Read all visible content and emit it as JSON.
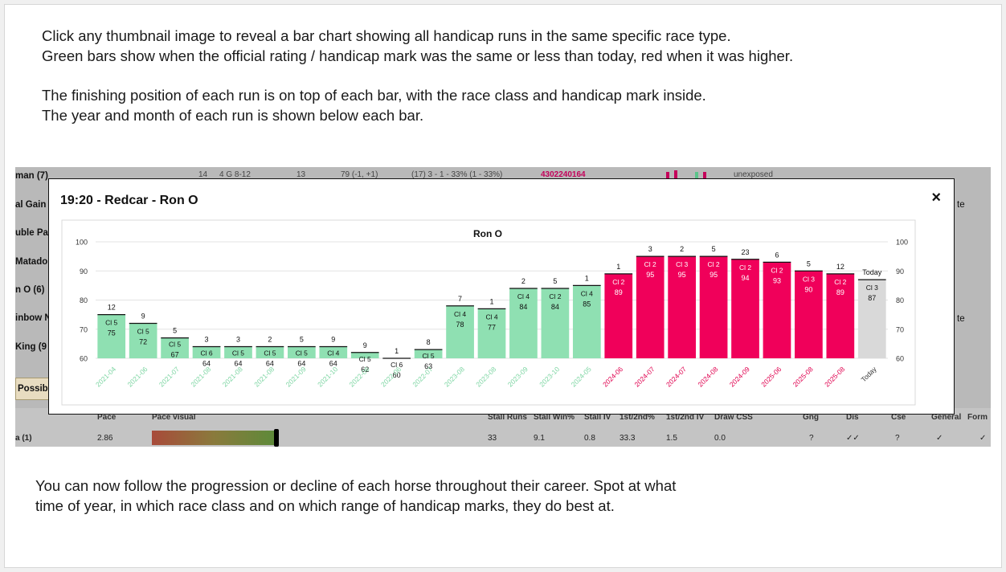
{
  "intro": {
    "line1": "Click any thumbnail image to reveal a bar chart showing all handicap runs in the same specific race type.",
    "line2": "Green bars show when the official rating / handicap mark was the same or less than today, red when it was higher.",
    "line3": "The finishing position of each run is on top of each bar, with the race class and handicap mark inside.",
    "line4": "The year and month of each run is shown below each bar."
  },
  "outro": {
    "line1": "You can now follow the progression or decline of each horse throughout their career. Spot at what",
    "line2": "time of year, in which race class and on which range of handicap marks, they do best at."
  },
  "background_table": {
    "row_labels": [
      "man (7)",
      "al Gain",
      "uble Pa",
      "Matado",
      "n O (6)",
      "inbow N",
      "King (9",
      "Possib",
      "a (1)"
    ],
    "right_labels": [
      "te",
      "te"
    ],
    "top_row": [
      "14",
      "4 G 8-12",
      "13",
      "79 (-1, +1)",
      "(17) 3 - 1 - 33% (1 - 33%)",
      "4302240164",
      "unexposed"
    ],
    "headers": [
      "Pace",
      "Pace visual",
      "Stall Runs",
      "Stall Win%",
      "Stall IV",
      "1st/2nd%",
      "1st/2nd IV",
      "Draw CSS",
      "Gng",
      "Dis",
      "Cse",
      "General",
      "Form"
    ],
    "values": [
      "2.86",
      "33",
      "9.1",
      "0.8",
      "33.3",
      "1.5",
      "0.0",
      "?",
      "✓✓",
      "?",
      "✓",
      "✓"
    ]
  },
  "modal": {
    "title": "19:20 - Redcar - Ron O",
    "close_label": "×"
  },
  "colors": {
    "green": "#8fe0b2",
    "red": "#f0005a",
    "today": "#d9d9d9"
  },
  "chart_data": {
    "type": "bar",
    "title": "Ron O",
    "ylim": [
      60,
      100
    ],
    "yticks": [
      60,
      70,
      80,
      90,
      100
    ],
    "grid": true,
    "categories": [
      "2021-04",
      "2021-06",
      "2021-07",
      "2021-08",
      "2021-08",
      "2021-08",
      "2021-09",
      "2021-10",
      "2022-06",
      "2022-06",
      "2022-07",
      "2023-08",
      "2023-08",
      "2023-09",
      "2023-10",
      "2024-05",
      "2024-06",
      "2024-07",
      "2024-07",
      "2024-08",
      "2024-09",
      "2025-06",
      "2025-08",
      "2025-08",
      "Today"
    ],
    "values": [
      75,
      72,
      67,
      64,
      64,
      64,
      64,
      64,
      62,
      60,
      63,
      78,
      77,
      84,
      84,
      85,
      89,
      95,
      95,
      95,
      94,
      93,
      90,
      89,
      87
    ],
    "classes": [
      "Cl 5",
      "Cl 5",
      "Cl 5",
      "Cl 6",
      "Cl 5",
      "Cl 5",
      "Cl 5",
      "Cl 4",
      "Cl 5",
      "Cl 6",
      "Cl 5",
      "Cl 4",
      "Cl 4",
      "Cl 4",
      "Cl 2",
      "Cl 4",
      "Cl 2",
      "Cl 2",
      "Cl 3",
      "Cl 2",
      "Cl 2",
      "Cl 2",
      "Cl 3",
      "Cl 2",
      "Cl 3"
    ],
    "positions": [
      "12",
      "9",
      "5",
      "3",
      "3",
      "2",
      "5",
      "9",
      "9",
      "1",
      "8",
      "7",
      "1",
      "2",
      "5",
      "1",
      "1",
      "3",
      "2",
      "5",
      "23",
      "6",
      "5",
      "12",
      "Today"
    ],
    "status": [
      "green",
      "green",
      "green",
      "green",
      "green",
      "green",
      "green",
      "green",
      "green",
      "green",
      "green",
      "green",
      "green",
      "green",
      "green",
      "green",
      "red",
      "red",
      "red",
      "red",
      "red",
      "red",
      "red",
      "red",
      "today"
    ]
  }
}
